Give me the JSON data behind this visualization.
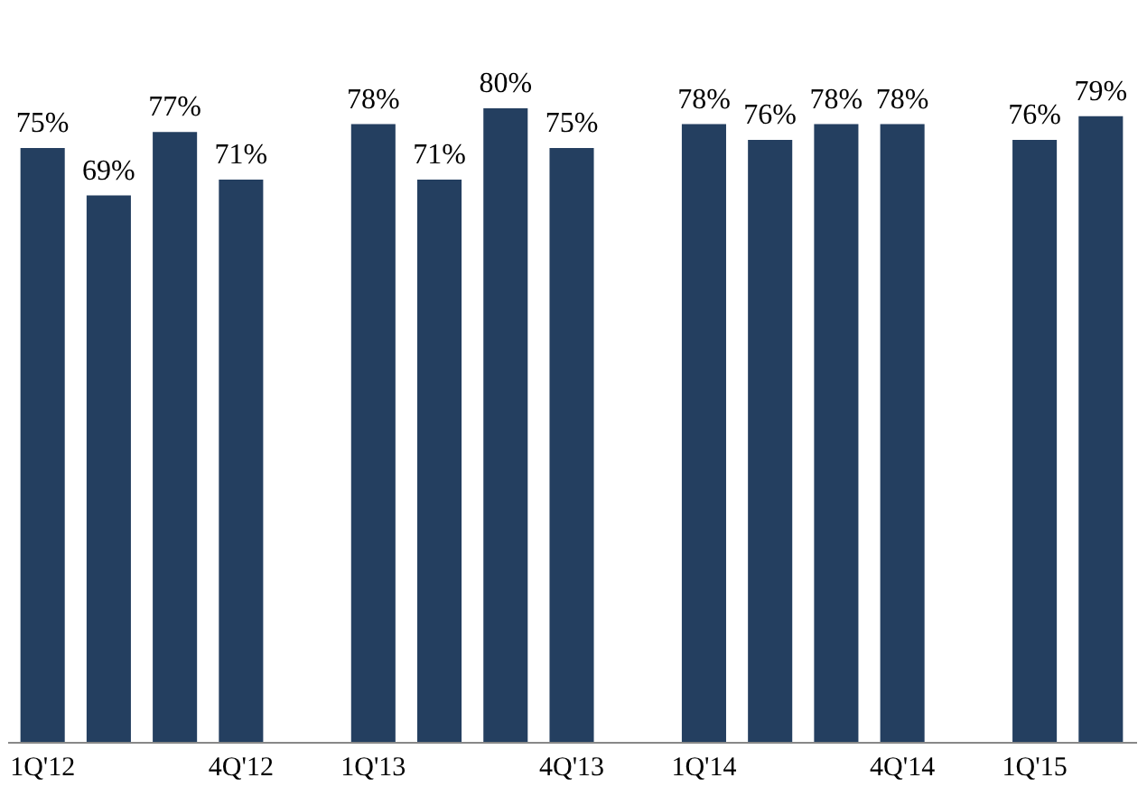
{
  "chart_data": {
    "type": "bar",
    "categories": [
      "1Q'12",
      null,
      null,
      "4Q'12",
      null,
      "1Q'13",
      null,
      null,
      "4Q'13",
      null,
      "1Q'14",
      null,
      null,
      "4Q'14",
      null,
      "1Q'15",
      null
    ],
    "values": [
      75,
      69,
      77,
      71,
      null,
      78,
      71,
      80,
      75,
      null,
      78,
      76,
      78,
      78,
      null,
      76,
      79
    ],
    "value_labels": [
      "75%",
      "69%",
      "77%",
      "71%",
      null,
      "78%",
      "71%",
      "80%",
      "75%",
      null,
      "78%",
      "76%",
      "78%",
      "78%",
      null,
      "76%",
      "79%"
    ],
    "color": "#243f60",
    "tick_labels": "x"
  }
}
